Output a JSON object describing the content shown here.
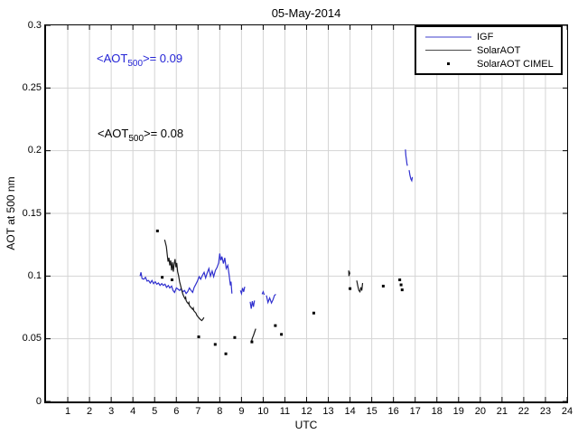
{
  "title": "05-May-2014",
  "axes": {
    "xlabel": "UTC",
    "ylabel": "AOT at 500 nm",
    "xlim": [
      0,
      24
    ],
    "ylim": [
      0,
      0.3
    ],
    "xticks": [
      1,
      2,
      3,
      4,
      5,
      6,
      7,
      8,
      9,
      10,
      11,
      12,
      13,
      14,
      15,
      16,
      17,
      18,
      19,
      20,
      21,
      22,
      23,
      24
    ],
    "xtick_labels": [
      "1",
      "2",
      "3",
      "4",
      "5",
      "6",
      "7",
      "8",
      "9",
      "10",
      "11",
      "12",
      "13",
      "14",
      "15",
      "16",
      "17",
      "18",
      "19",
      "20",
      "21",
      "22",
      "23",
      "24"
    ],
    "yticks": [
      0,
      0.05,
      0.1,
      0.15,
      0.2,
      0.25,
      0.3
    ],
    "ytick_labels": [
      "0",
      "0.05",
      "0.1",
      "0.15",
      "0.2",
      "0.25",
      "0.3"
    ],
    "grid": true,
    "grid_color": "#d4d4d4"
  },
  "annotations": [
    {
      "prefix": "<AOT",
      "sub": "500",
      "suffix": ">= 0.09",
      "color": "#2424d6"
    },
    {
      "prefix": "<AOT",
      "sub": "500",
      "suffix": ">= 0.08",
      "color": "#000000"
    }
  ],
  "legend": {
    "position": "top-right",
    "items": [
      {
        "label": "IGF",
        "type": "line",
        "color": "#9f9fe6"
      },
      {
        "label": "SolarAOT",
        "type": "line",
        "color": "#4a4a4a"
      },
      {
        "label": "SolarAOT CIMEL",
        "type": "dot",
        "color": "#000000"
      }
    ]
  },
  "chart_data": {
    "type": "line",
    "xlabel": "UTC",
    "ylabel": "AOT at 500 nm",
    "xlim": [
      0,
      24
    ],
    "ylim": [
      0,
      0.3
    ],
    "series": [
      {
        "name": "IGF",
        "style": "line",
        "color": "#3030cf",
        "segments": [
          [
            [
              4.33,
              0.1
            ],
            [
              4.37,
              0.103
            ],
            [
              4.42,
              0.098
            ],
            [
              4.5,
              0.0975
            ],
            [
              4.58,
              0.099
            ],
            [
              4.65,
              0.096
            ],
            [
              4.72,
              0.0965
            ],
            [
              4.8,
              0.0945
            ],
            [
              4.88,
              0.0965
            ],
            [
              4.95,
              0.094
            ],
            [
              5.03,
              0.0955
            ],
            [
              5.1,
              0.0935
            ],
            [
              5.18,
              0.0945
            ],
            [
              5.25,
              0.0925
            ],
            [
              5.33,
              0.094
            ],
            [
              5.4,
              0.0925
            ],
            [
              5.48,
              0.0935
            ],
            [
              5.55,
              0.091
            ],
            [
              5.63,
              0.0925
            ],
            [
              5.7,
              0.0905
            ],
            [
              5.78,
              0.092
            ],
            [
              5.85,
              0.0885
            ],
            [
              5.92,
              0.087
            ],
            [
              6.0,
              0.0905
            ],
            [
              6.08,
              0.0895
            ],
            [
              6.15,
              0.0885
            ],
            [
              6.22,
              0.09
            ],
            [
              6.3,
              0.0875
            ],
            [
              6.38,
              0.0885
            ],
            [
              6.45,
              0.086
            ],
            [
              6.52,
              0.0875
            ],
            [
              6.6,
              0.0905
            ],
            [
              6.68,
              0.0885
            ],
            [
              6.75,
              0.087
            ],
            [
              6.82,
              0.091
            ],
            [
              6.9,
              0.0935
            ],
            [
              6.97,
              0.096
            ],
            [
              7.05,
              0.0995
            ],
            [
              7.12,
              0.0975
            ],
            [
              7.2,
              0.1005
            ],
            [
              7.28,
              0.103
            ],
            [
              7.35,
              0.0985
            ],
            [
              7.42,
              0.1025
            ],
            [
              7.5,
              0.106
            ],
            [
              7.57,
              0.1
            ],
            [
              7.65,
              0.104
            ],
            [
              7.72,
              0.0995
            ],
            [
              7.8,
              0.1045
            ],
            [
              7.88,
              0.107
            ],
            [
              7.95,
              0.1105
            ],
            [
              8.0,
              0.118
            ],
            [
              8.05,
              0.1125
            ],
            [
              8.1,
              0.1155
            ],
            [
              8.17,
              0.11
            ],
            [
              8.23,
              0.1145
            ],
            [
              8.3,
              0.106
            ],
            [
              8.37,
              0.1085
            ],
            [
              8.43,
              0.101
            ],
            [
              8.49,
              0.0925
            ],
            [
              8.52,
              0.0955
            ],
            [
              8.56,
              0.086
            ]
          ],
          [
            [
              8.95,
              0.0885
            ],
            [
              9.0,
              0.086
            ],
            [
              9.05,
              0.0905
            ],
            [
              9.1,
              0.0875
            ],
            [
              9.15,
              0.0915
            ]
          ],
          [
            [
              9.4,
              0.0795
            ],
            [
              9.45,
              0.074
            ],
            [
              9.5,
              0.08
            ],
            [
              9.55,
              0.0755
            ],
            [
              9.6,
              0.0805
            ]
          ],
          [
            [
              9.95,
              0.0855
            ],
            [
              10.0,
              0.0875
            ],
            [
              10.05,
              0.085
            ]
          ],
          [
            [
              10.15,
              0.0845
            ],
            [
              10.22,
              0.079
            ],
            [
              10.3,
              0.0825
            ],
            [
              10.38,
              0.0785
            ],
            [
              10.45,
              0.081
            ],
            [
              10.52,
              0.0845
            ],
            [
              10.58,
              0.0855
            ]
          ],
          [
            [
              16.55,
              0.201
            ],
            [
              16.57,
              0.196
            ],
            [
              16.6,
              0.1925
            ],
            [
              16.62,
              0.1895
            ],
            [
              16.64,
              0.188
            ]
          ],
          [
            [
              16.72,
              0.1845
            ],
            [
              16.76,
              0.1805
            ],
            [
              16.8,
              0.1775
            ],
            [
              16.84,
              0.176
            ],
            [
              16.87,
              0.179
            ]
          ]
        ]
      },
      {
        "name": "SolarAOT",
        "style": "line",
        "color": "#1a1a1a",
        "segments": [
          [
            [
              5.46,
              0.129
            ],
            [
              5.5,
              0.1265
            ],
            [
              5.54,
              0.1235
            ],
            [
              5.58,
              0.117
            ],
            [
              5.62,
              0.1115
            ],
            [
              5.66,
              0.1145
            ],
            [
              5.7,
              0.1085
            ],
            [
              5.74,
              0.1125
            ],
            [
              5.78,
              0.1045
            ],
            [
              5.82,
              0.111
            ],
            [
              5.86,
              0.1035
            ],
            [
              5.9,
              0.1095
            ],
            [
              5.94,
              0.1135
            ],
            [
              5.98,
              0.107
            ],
            [
              6.02,
              0.1105
            ],
            [
              6.06,
              0.1035
            ],
            [
              6.1,
              0.1005
            ],
            [
              6.15,
              0.0955
            ],
            [
              6.2,
              0.092
            ],
            [
              6.25,
              0.0885
            ],
            [
              6.3,
              0.0855
            ],
            [
              6.35,
              0.0835
            ],
            [
              6.4,
              0.082
            ],
            [
              6.43,
              0.083
            ],
            [
              6.45,
              0.0805
            ],
            [
              6.5,
              0.079
            ],
            [
              6.55,
              0.078
            ],
            [
              6.58,
              0.079
            ],
            [
              6.6,
              0.0765
            ],
            [
              6.65,
              0.0755
            ],
            [
              6.7,
              0.0745
            ],
            [
              6.75,
              0.0735
            ],
            [
              6.78,
              0.0745
            ],
            [
              6.8,
              0.0725
            ],
            [
              6.85,
              0.0715
            ],
            [
              6.9,
              0.0705
            ],
            [
              6.95,
              0.0685
            ],
            [
              7.0,
              0.0675
            ],
            [
              7.05,
              0.0665
            ],
            [
              7.1,
              0.0655
            ],
            [
              7.17,
              0.0645
            ],
            [
              7.22,
              0.0655
            ],
            [
              7.27,
              0.067
            ]
          ],
          [
            [
              9.45,
              0.047
            ],
            [
              9.5,
              0.0505
            ],
            [
              9.55,
              0.0525
            ],
            [
              9.61,
              0.0555
            ],
            [
              9.66,
              0.058
            ]
          ],
          [
            [
              13.94,
              0.1045
            ],
            [
              13.95,
              0.1
            ],
            [
              13.97,
              0.1035
            ],
            [
              13.99,
              0.1015
            ]
          ],
          [
            [
              14.31,
              0.0965
            ],
            [
              14.36,
              0.092
            ],
            [
              14.41,
              0.0885
            ],
            [
              14.46,
              0.0875
            ],
            [
              14.5,
              0.091
            ],
            [
              14.54,
              0.0885
            ],
            [
              14.58,
              0.0945
            ]
          ]
        ]
      },
      {
        "name": "SolarAOT CIMEL",
        "style": "scatter",
        "color": "#000000",
        "points": [
          [
            5.13,
            0.136
          ],
          [
            5.35,
            0.099
          ],
          [
            5.8,
            0.097
          ],
          [
            7.03,
            0.0515
          ],
          [
            7.79,
            0.0455
          ],
          [
            8.28,
            0.038
          ],
          [
            8.69,
            0.051
          ],
          [
            9.48,
            0.0475
          ],
          [
            10.56,
            0.0605
          ],
          [
            10.84,
            0.0535
          ],
          [
            12.33,
            0.0705
          ],
          [
            14.0,
            0.09
          ],
          [
            15.53,
            0.092
          ],
          [
            16.29,
            0.097
          ],
          [
            16.35,
            0.093
          ],
          [
            16.4,
            0.089
          ]
        ]
      }
    ]
  }
}
